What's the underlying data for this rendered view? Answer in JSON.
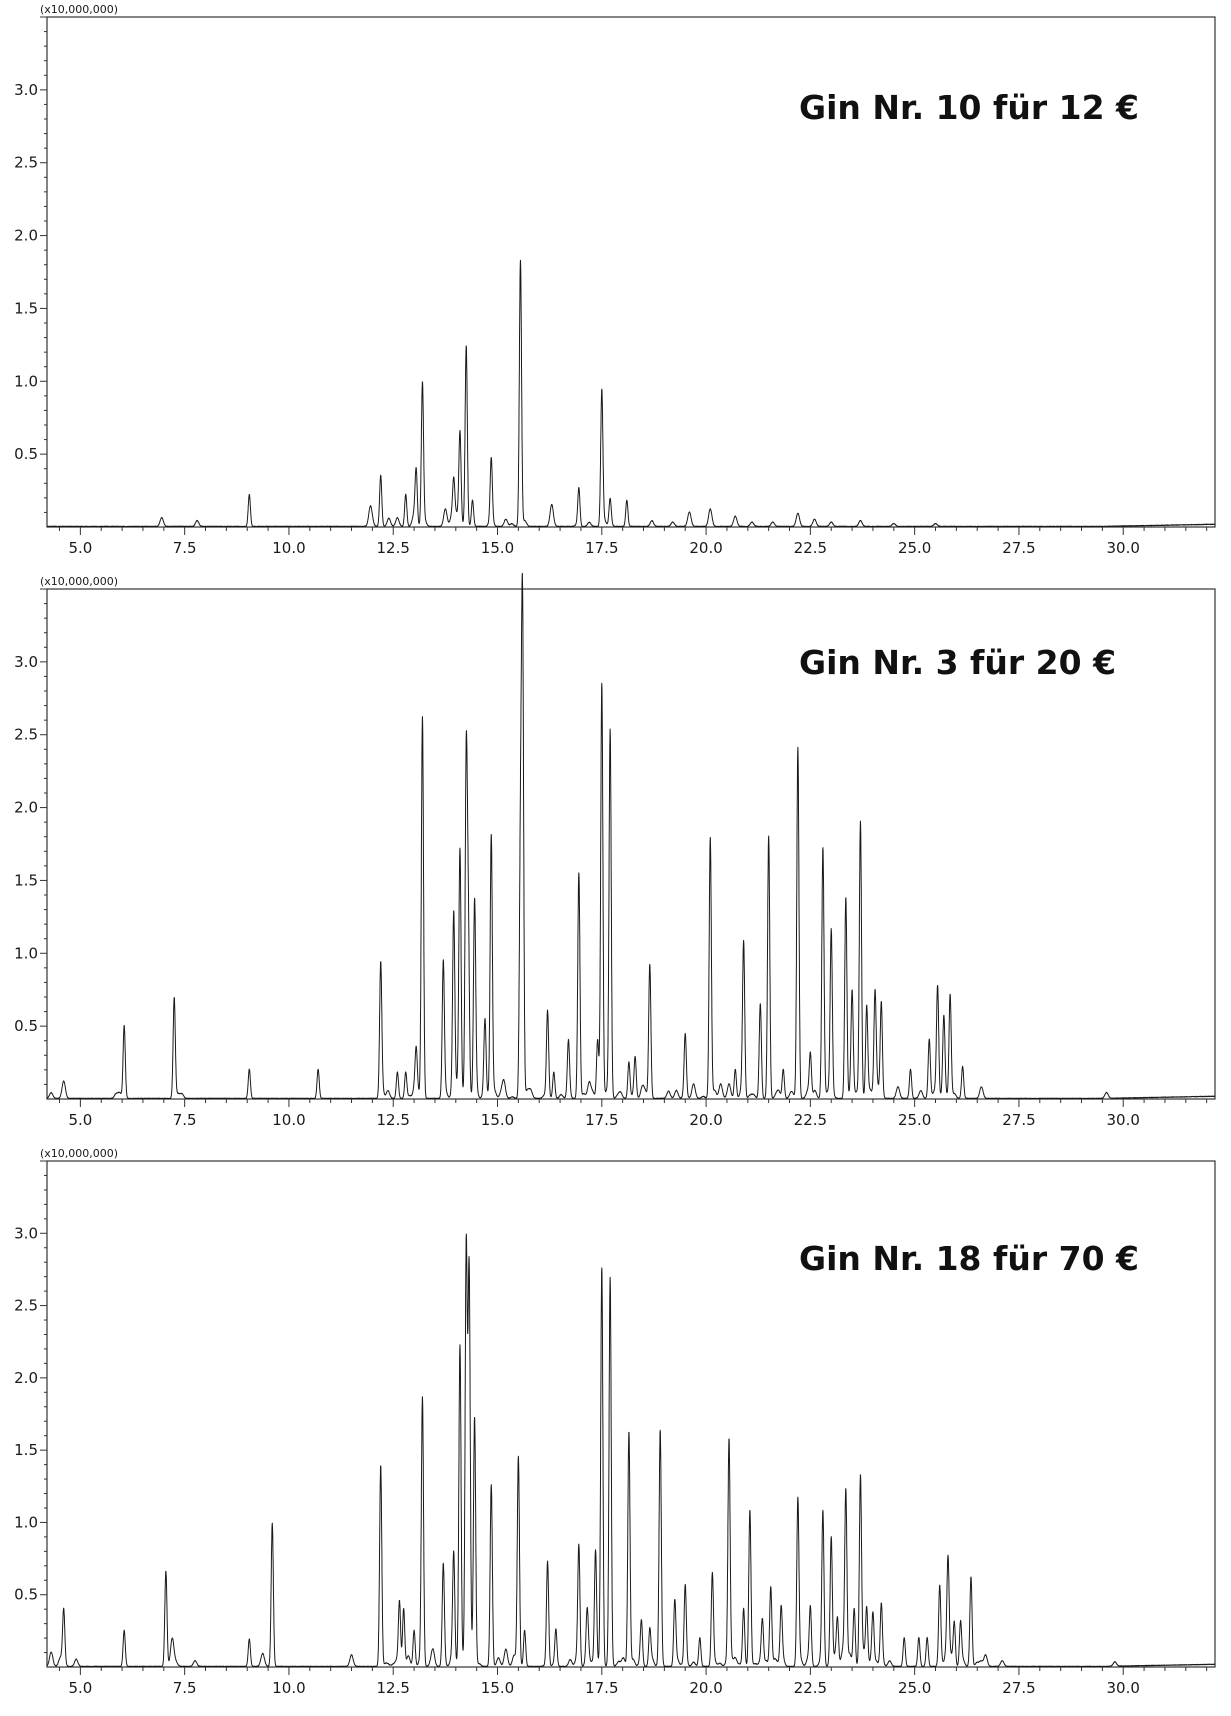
{
  "chart_data": [
    {
      "type": "line",
      "title": "Gin Nr. 10 für 12 €",
      "scale_label": "(x10,000,000)",
      "xlim": [
        4.2,
        32.2
      ],
      "ylim": [
        0,
        3.5
      ],
      "x_ticks": [
        "5.0",
        "7.5",
        "10.0",
        "12.5",
        "15.0",
        "17.5",
        "20.0",
        "22.5",
        "25.0",
        "27.5",
        "30.0"
      ],
      "y_ticks": [
        "0.5",
        "1.0",
        "1.5",
        "2.0",
        "2.5",
        "3.0"
      ],
      "grid": false,
      "series_color": "#1a1a1a",
      "peaks": [
        [
          6.95,
          0.06
        ],
        [
          7.8,
          0.04
        ],
        [
          9.05,
          0.22
        ],
        [
          11.95,
          0.12
        ],
        [
          12.2,
          0.35
        ],
        [
          12.6,
          0.06
        ],
        [
          12.8,
          0.22
        ],
        [
          13.05,
          0.36
        ],
        [
          13.2,
          0.98
        ],
        [
          13.75,
          0.12
        ],
        [
          13.95,
          0.26
        ],
        [
          14.1,
          0.6
        ],
        [
          14.25,
          1.24
        ],
        [
          14.4,
          0.18
        ],
        [
          14.85,
          0.44
        ],
        [
          15.2,
          0.05
        ],
        [
          15.55,
          1.83
        ],
        [
          16.3,
          0.15
        ],
        [
          16.95,
          0.26
        ],
        [
          17.5,
          0.93
        ],
        [
          17.7,
          0.17
        ],
        [
          18.1,
          0.18
        ],
        [
          18.7,
          0.04
        ],
        [
          19.2,
          0.03
        ],
        [
          19.6,
          0.1
        ],
        [
          20.1,
          0.12
        ],
        [
          20.7,
          0.07
        ],
        [
          21.1,
          0.03
        ],
        [
          21.6,
          0.03
        ],
        [
          22.2,
          0.09
        ],
        [
          22.6,
          0.05
        ],
        [
          23.0,
          0.03
        ],
        [
          23.7,
          0.04
        ],
        [
          24.5,
          0.02
        ],
        [
          25.5,
          0.02
        ]
      ]
    },
    {
      "type": "line",
      "title": "Gin Nr. 3 für 20 €",
      "scale_label": "(x10,000,000)",
      "xlim": [
        4.2,
        32.2
      ],
      "ylim": [
        0,
        3.5
      ],
      "x_ticks": [
        "5.0",
        "7.5",
        "10.0",
        "12.5",
        "15.0",
        "17.5",
        "20.0",
        "22.5",
        "25.0",
        "27.5",
        "30.0"
      ],
      "y_ticks": [
        "0.5",
        "1.0",
        "1.5",
        "2.0",
        "2.5",
        "3.0"
      ],
      "grid": false,
      "series_color": "#1a1a1a",
      "peaks": [
        [
          4.3,
          0.04
        ],
        [
          4.6,
          0.12
        ],
        [
          6.05,
          0.5
        ],
        [
          7.25,
          0.69
        ],
        [
          9.05,
          0.2
        ],
        [
          10.7,
          0.2
        ],
        [
          12.2,
          0.9
        ],
        [
          12.6,
          0.18
        ],
        [
          12.8,
          0.18
        ],
        [
          13.05,
          0.26
        ],
        [
          13.2,
          2.62
        ],
        [
          13.7,
          0.93
        ],
        [
          13.95,
          1.22
        ],
        [
          14.1,
          1.62
        ],
        [
          14.25,
          2.27
        ],
        [
          14.3,
          1.12
        ],
        [
          14.45,
          1.27
        ],
        [
          14.7,
          0.5
        ],
        [
          14.85,
          1.8
        ],
        [
          15.15,
          0.12
        ],
        [
          15.55,
          1.67
        ],
        [
          15.6,
          3.29
        ],
        [
          16.2,
          0.58
        ],
        [
          16.35,
          0.18
        ],
        [
          16.7,
          0.36
        ],
        [
          16.95,
          1.55
        ],
        [
          17.2,
          0.1
        ],
        [
          17.4,
          0.4
        ],
        [
          17.5,
          2.84
        ],
        [
          17.7,
          2.53
        ],
        [
          18.15,
          0.25
        ],
        [
          18.3,
          0.27
        ],
        [
          18.65,
          0.92
        ],
        [
          19.1,
          0.05
        ],
        [
          19.5,
          0.4
        ],
        [
          19.7,
          0.1
        ],
        [
          20.1,
          1.79
        ],
        [
          20.35,
          0.1
        ],
        [
          20.55,
          0.1
        ],
        [
          20.7,
          0.2
        ],
        [
          20.9,
          1.04
        ],
        [
          21.3,
          0.65
        ],
        [
          21.5,
          1.8
        ],
        [
          21.85,
          0.2
        ],
        [
          22.2,
          2.41
        ],
        [
          22.5,
          0.3
        ],
        [
          22.8,
          1.67
        ],
        [
          23.0,
          1.14
        ],
        [
          23.35,
          1.38
        ],
        [
          23.5,
          0.65
        ],
        [
          23.7,
          1.89
        ],
        [
          23.85,
          0.63
        ],
        [
          24.05,
          0.65
        ],
        [
          24.2,
          0.64
        ],
        [
          24.6,
          0.08
        ],
        [
          24.9,
          0.2
        ],
        [
          25.35,
          0.39
        ],
        [
          25.55,
          0.75
        ],
        [
          25.7,
          0.48
        ],
        [
          25.85,
          0.69
        ],
        [
          26.15,
          0.22
        ],
        [
          26.6,
          0.08
        ],
        [
          29.6,
          0.04
        ]
      ]
    },
    {
      "type": "line",
      "title": "Gin Nr. 18 für 70 €",
      "scale_label": "(x10,000,000)",
      "xlim": [
        4.2,
        32.2
      ],
      "ylim": [
        0,
        3.5
      ],
      "x_ticks": [
        "5.0",
        "7.5",
        "10.0",
        "12.5",
        "15.0",
        "17.5",
        "20.0",
        "22.5",
        "25.0",
        "27.5",
        "30.0"
      ],
      "y_ticks": [
        "0.5",
        "1.0",
        "1.5",
        "2.0",
        "2.5",
        "3.0"
      ],
      "grid": false,
      "series_color": "#1a1a1a",
      "peaks": [
        [
          4.3,
          0.1
        ],
        [
          4.6,
          0.35
        ],
        [
          4.9,
          0.05
        ],
        [
          6.05,
          0.25
        ],
        [
          7.05,
          0.66
        ],
        [
          7.2,
          0.15
        ],
        [
          7.75,
          0.04
        ],
        [
          9.05,
          0.19
        ],
        [
          9.6,
          0.99
        ],
        [
          11.5,
          0.08
        ],
        [
          12.2,
          1.39
        ],
        [
          12.65,
          0.44
        ],
        [
          12.75,
          0.4
        ],
        [
          13.0,
          0.25
        ],
        [
          13.2,
          1.84
        ],
        [
          13.45,
          0.12
        ],
        [
          13.7,
          0.7
        ],
        [
          13.95,
          0.75
        ],
        [
          14.1,
          2.17
        ],
        [
          14.25,
          2.83
        ],
        [
          14.32,
          2.7
        ],
        [
          14.45,
          1.69
        ],
        [
          14.85,
          1.26
        ],
        [
          15.2,
          0.12
        ],
        [
          15.5,
          1.45
        ],
        [
          15.65,
          0.25
        ],
        [
          16.2,
          0.72
        ],
        [
          16.4,
          0.25
        ],
        [
          16.95,
          0.82
        ],
        [
          17.15,
          0.3
        ],
        [
          17.35,
          0.8
        ],
        [
          17.5,
          2.73
        ],
        [
          17.7,
          2.67
        ],
        [
          18.15,
          1.62
        ],
        [
          18.45,
          0.3
        ],
        [
          18.65,
          0.25
        ],
        [
          18.9,
          1.59
        ],
        [
          19.25,
          0.45
        ],
        [
          19.5,
          0.55
        ],
        [
          19.85,
          0.2
        ],
        [
          20.15,
          0.64
        ],
        [
          20.55,
          1.55
        ],
        [
          20.9,
          0.4
        ],
        [
          21.05,
          1.08
        ],
        [
          21.35,
          0.3
        ],
        [
          21.55,
          0.55
        ],
        [
          21.8,
          0.38
        ],
        [
          22.2,
          1.14
        ],
        [
          22.5,
          0.4
        ],
        [
          22.8,
          1.06
        ],
        [
          23.0,
          0.86
        ],
        [
          23.15,
          0.3
        ],
        [
          23.35,
          1.18
        ],
        [
          23.55,
          0.4
        ],
        [
          23.7,
          1.3
        ],
        [
          23.85,
          0.4
        ],
        [
          24.0,
          0.35
        ],
        [
          24.2,
          0.4
        ],
        [
          24.75,
          0.2
        ],
        [
          25.1,
          0.2
        ],
        [
          25.3,
          0.2
        ],
        [
          25.6,
          0.54
        ],
        [
          25.8,
          0.65
        ],
        [
          25.95,
          0.3
        ],
        [
          26.1,
          0.3
        ],
        [
          26.35,
          0.62
        ],
        [
          26.7,
          0.08
        ],
        [
          27.1,
          0.04
        ],
        [
          29.8,
          0.03
        ]
      ]
    }
  ]
}
